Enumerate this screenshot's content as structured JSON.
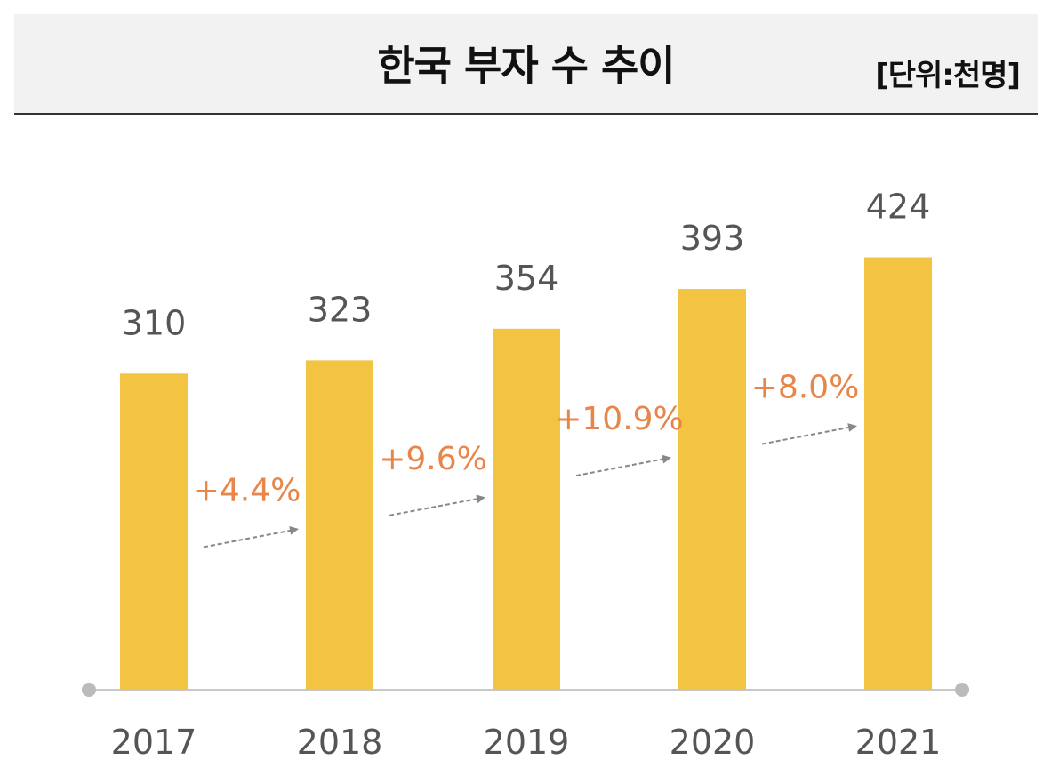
{
  "header": {
    "title": "한국 부자 수 추이",
    "unit": "[단위:천명]"
  },
  "colors": {
    "bar": "#f3c342",
    "value_label": "#555555",
    "growth_label": "#e8864a",
    "arrow": "#888888",
    "axis": "#c8c8c8",
    "axis_dot": "#bbbbbb",
    "header_bg": "#f2f2f2"
  },
  "chart_data": {
    "type": "bar",
    "categories": [
      "2017",
      "2018",
      "2019",
      "2020",
      "2021"
    ],
    "values": [
      310,
      323,
      354,
      393,
      424
    ],
    "value_labels": [
      "310",
      "323",
      "354",
      "393",
      "424"
    ],
    "growth": [
      {
        "from": "2017",
        "to": "2018",
        "label": "+4.4%"
      },
      {
        "from": "2018",
        "to": "2019",
        "label": "+9.6%"
      },
      {
        "from": "2019",
        "to": "2020",
        "label": "+10.9%"
      },
      {
        "from": "2020",
        "to": "2021",
        "label": "+8.0%"
      }
    ],
    "title": "한국 부자 수 추이",
    "unit": "[단위:천명]",
    "xlabel": "",
    "ylabel": "",
    "grid": false,
    "legend": "none"
  }
}
